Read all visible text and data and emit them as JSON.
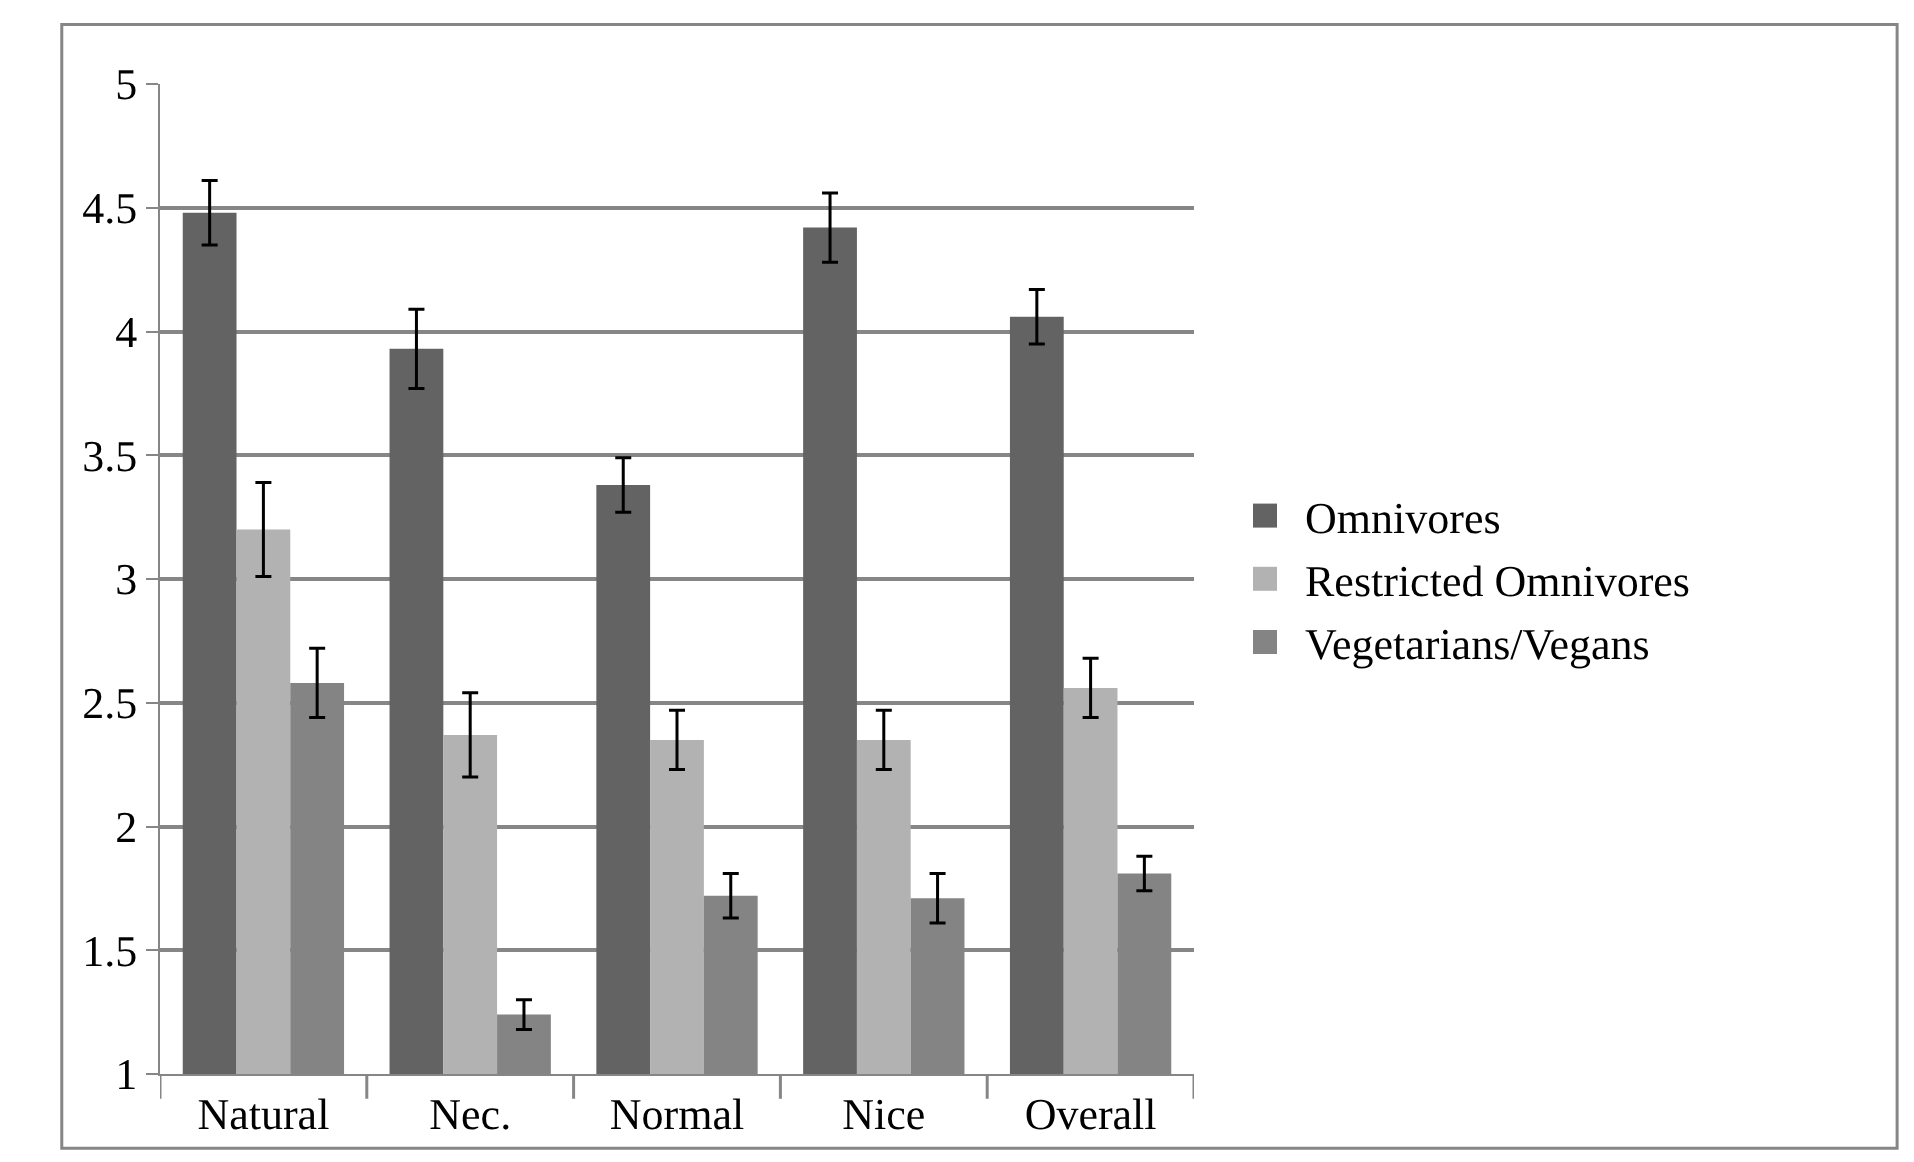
{
  "chart_data": {
    "type": "bar",
    "categories": [
      "Natural",
      "Nec.",
      "Normal",
      "Nice",
      "Overall"
    ],
    "series": [
      {
        "name": "Omnivores",
        "color": "#636363",
        "values": [
          4.48,
          3.93,
          3.38,
          4.42,
          4.06
        ],
        "errors": [
          0.13,
          0.16,
          0.11,
          0.14,
          0.11
        ]
      },
      {
        "name": "Restricted Omnivores",
        "color": "#b2b2b2",
        "values": [
          3.2,
          2.37,
          2.35,
          2.35,
          2.56
        ],
        "errors": [
          0.19,
          0.17,
          0.12,
          0.12,
          0.12
        ]
      },
      {
        "name": "Vegetarians/Vegans",
        "color": "#848484",
        "values": [
          2.58,
          1.24,
          1.72,
          1.71,
          1.81
        ],
        "errors": [
          0.14,
          0.06,
          0.09,
          0.1,
          0.07
        ]
      }
    ],
    "ylim": [
      1,
      5
    ],
    "yticks": [
      1,
      1.5,
      2,
      2.5,
      3,
      3.5,
      4,
      4.5,
      5
    ],
    "grid": "y",
    "legend": "right"
  }
}
